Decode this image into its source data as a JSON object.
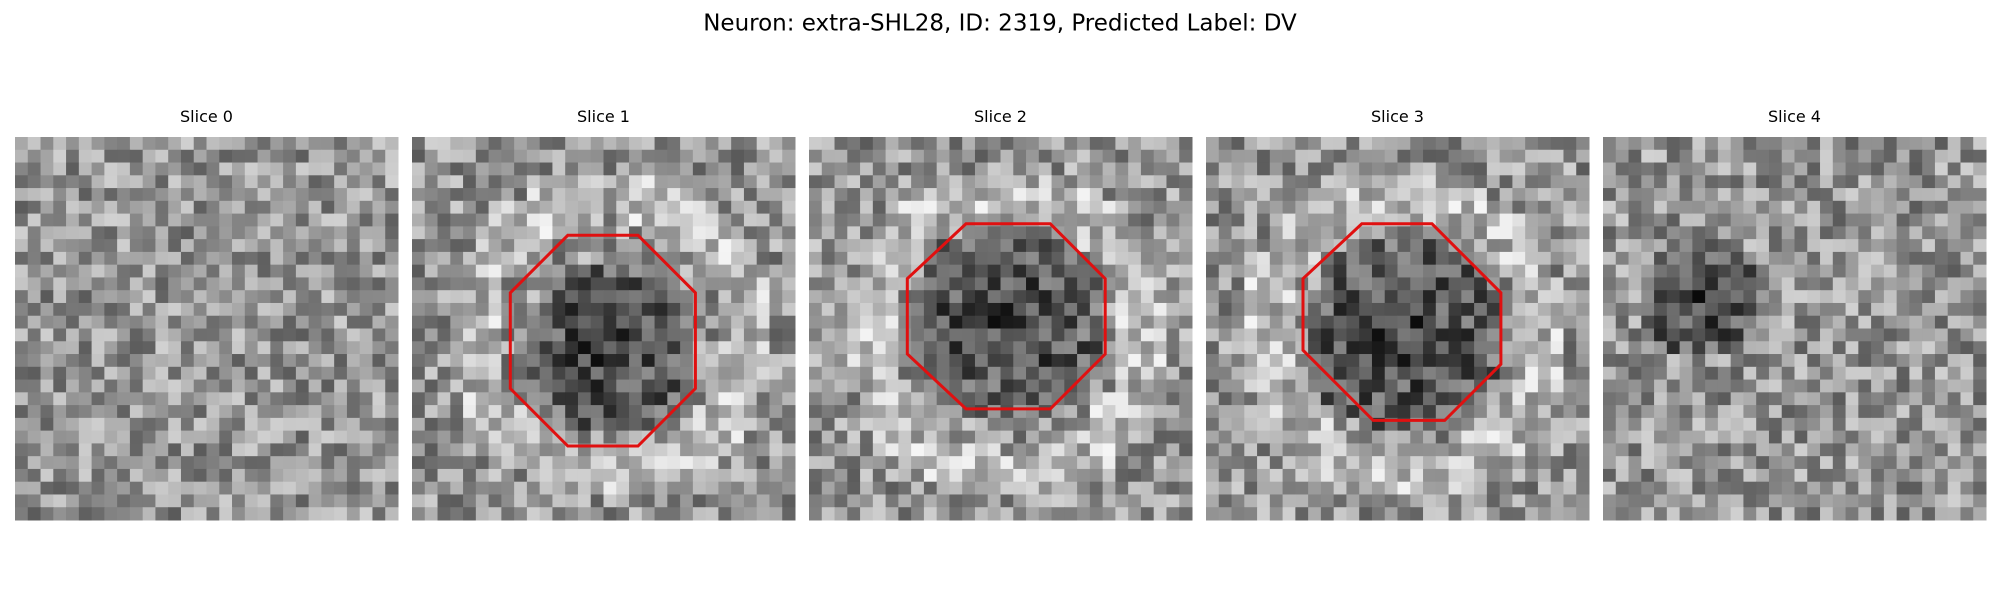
{
  "title": "Neuron: extra-SHL28, ID: 2319, Predicted Label: DV",
  "panels": [
    {
      "title": "Slice 0"
    },
    {
      "title": "Slice 1"
    },
    {
      "title": "Slice 2"
    },
    {
      "title": "Slice 3"
    },
    {
      "title": "Slice 4"
    }
  ]
}
